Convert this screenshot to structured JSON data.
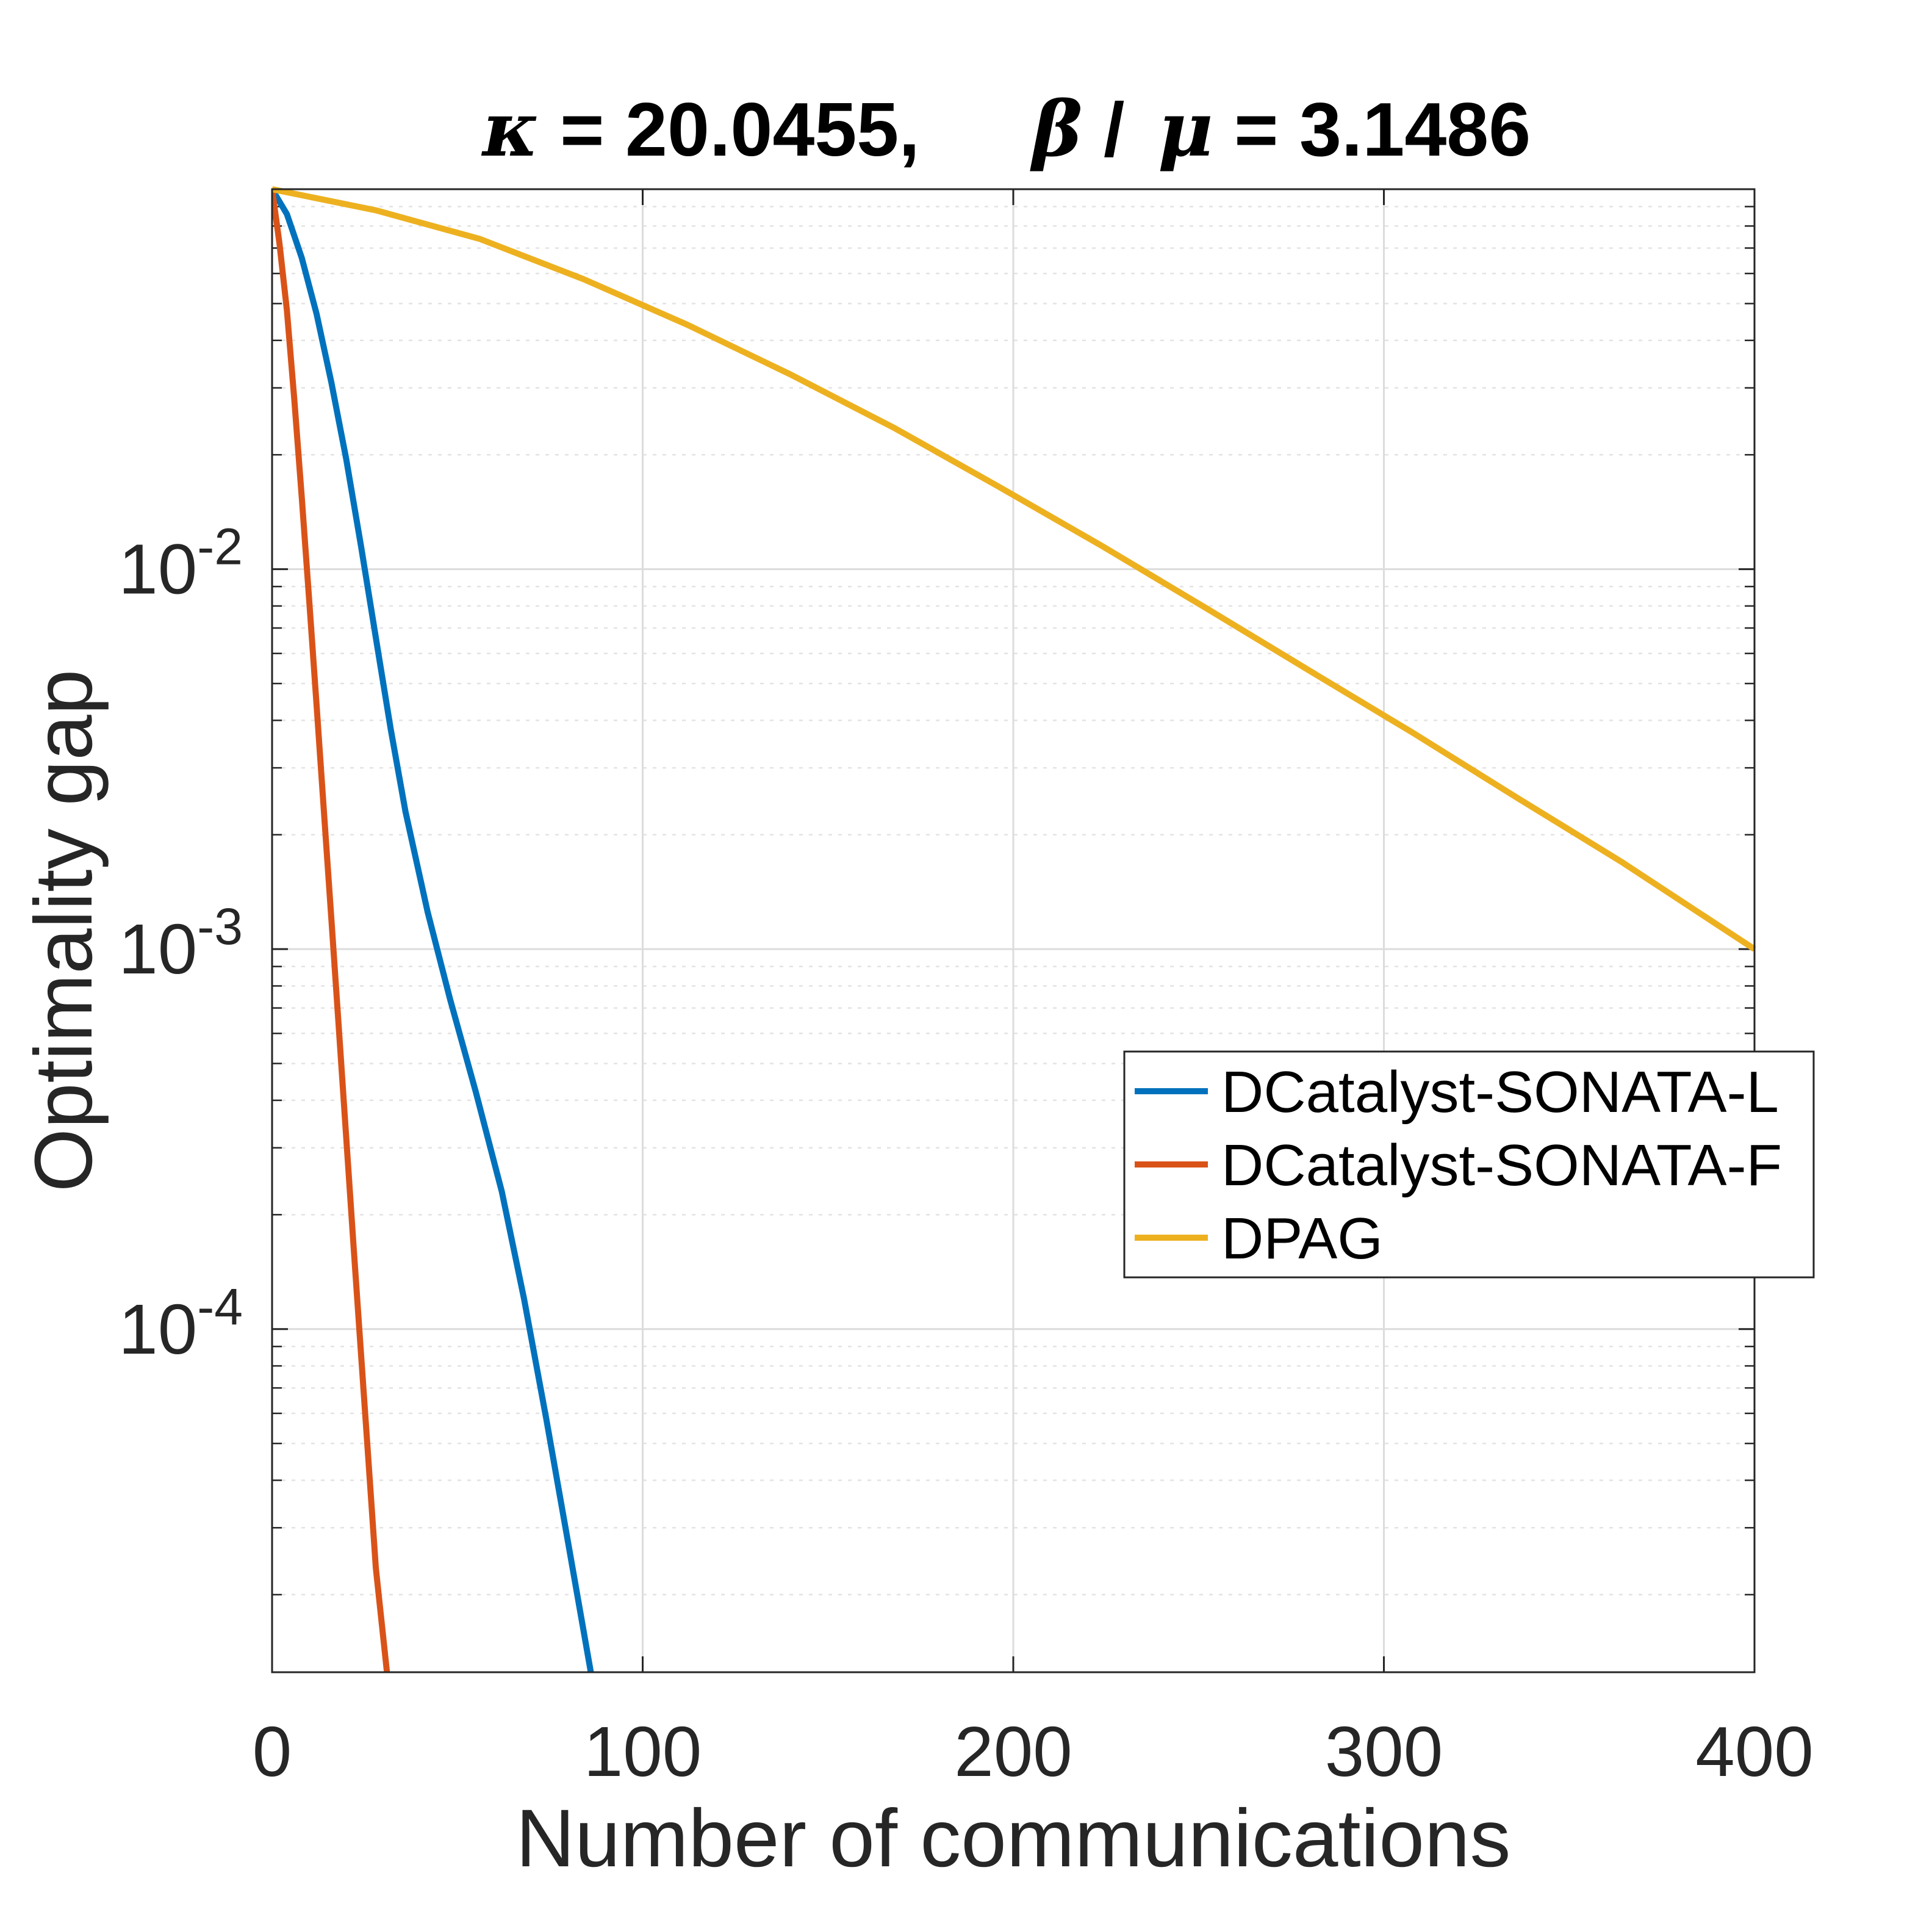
{
  "chart_data": {
    "type": "line",
    "title": {
      "kappa_symbol": "κ",
      "kappa_text": " = 20.0455,",
      "beta_symbol": "β",
      "slash": "/",
      "mu_symbol": "μ",
      "ratio_text": " = 3.1486"
    },
    "xlabel": "Number of communications",
    "ylabel": "Optimality gap",
    "xlim": [
      0,
      400
    ],
    "ylim": [
      1.25e-05,
      0.1
    ],
    "yscale": "log",
    "grid": true,
    "legend_position": "right-center",
    "x_ticks": [
      {
        "value": 0,
        "label": "0"
      },
      {
        "value": 100,
        "label": "100"
      },
      {
        "value": 200,
        "label": "200"
      },
      {
        "value": 300,
        "label": "300"
      },
      {
        "value": 400,
        "label": "400"
      }
    ],
    "y_ticks": [
      {
        "value": 0.01,
        "base": "10",
        "exp": "-2"
      },
      {
        "value": 0.001,
        "base": "10",
        "exp": "-3"
      },
      {
        "value": 0.0001,
        "base": "10",
        "exp": "-4"
      }
    ],
    "series": [
      {
        "name": "DCatalyst-SONATA-L",
        "color": "#0072BD",
        "x": [
          0,
          4,
          8,
          12,
          16,
          20,
          24,
          28,
          32,
          36,
          42,
          48,
          55,
          62,
          68,
          74,
          80,
          86
        ],
        "y": [
          0.1,
          0.086,
          0.066,
          0.047,
          0.031,
          0.0195,
          0.0115,
          0.0066,
          0.0038,
          0.0023,
          0.00125,
          0.00074,
          0.00042,
          0.00023,
          0.00012,
          5.8e-05,
          2.7e-05,
          1.25e-05
        ]
      },
      {
        "name": "DCatalyst-SONATA-F",
        "color": "#D95319",
        "x": [
          0,
          2,
          4,
          6,
          8,
          10,
          12,
          14,
          16,
          18,
          20,
          22,
          24,
          26,
          28,
          31
        ],
        "y": [
          0.1,
          0.072,
          0.048,
          0.028,
          0.0155,
          0.0083,
          0.0044,
          0.0023,
          0.0012,
          0.00062,
          0.00032,
          0.000165,
          8.6e-05,
          4.5e-05,
          2.35e-05,
          1.25e-05
        ]
      },
      {
        "name": "DPAG",
        "color": "#EDB120",
        "x": [
          0,
          28,
          56,
          84,
          112,
          140,
          168,
          196,
          224,
          252,
          280,
          308,
          336,
          364,
          400
        ],
        "y": [
          0.1,
          0.088,
          0.074,
          0.058,
          0.044,
          0.0325,
          0.0235,
          0.0165,
          0.0115,
          0.0079,
          0.0054,
          0.0037,
          0.0025,
          0.0017,
          0.001
        ]
      }
    ]
  }
}
